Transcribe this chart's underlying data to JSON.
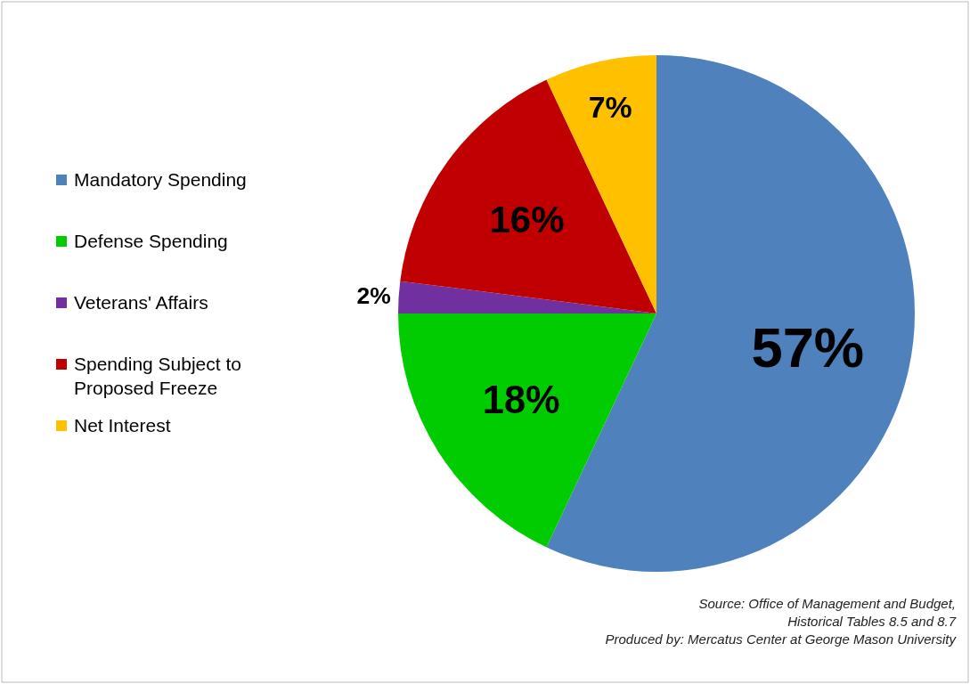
{
  "chart_data": {
    "type": "pie",
    "categories": [
      "Mandatory Spending",
      "Defense Spending",
      "Veterans' Affairs",
      "Spending Subject to Proposed Freeze",
      "Net Interest"
    ],
    "values": [
      57,
      18,
      2,
      16,
      7
    ],
    "colors": [
      "#4f81bd",
      "#00cc00",
      "#7030a0",
      "#c00000",
      "#ffc000"
    ],
    "legend": "left",
    "value_labels": [
      "57%",
      "18%",
      "2%",
      "16%",
      "7%"
    ],
    "annotations": [
      "Source: Office of Management and  Budget,",
      "Historical Tables 8.5  and 8.7",
      "Produced by: Mercatus Center at George Mason University"
    ]
  }
}
